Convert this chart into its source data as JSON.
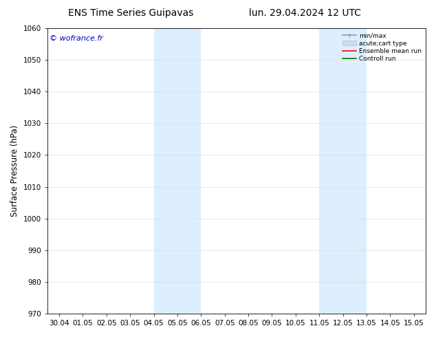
{
  "title_left": "ENS Time Series Guipavas",
  "title_right": "lun. 29.04.2024 12 UTC",
  "ylabel": "Surface Pressure (hPa)",
  "ylim": [
    970,
    1060
  ],
  "yticks": [
    970,
    980,
    990,
    1000,
    1010,
    1020,
    1030,
    1040,
    1050,
    1060
  ],
  "xtick_labels": [
    "30.04",
    "01.05",
    "02.05",
    "03.05",
    "04.05",
    "05.05",
    "06.05",
    "07.05",
    "08.05",
    "09.05",
    "10.05",
    "11.05",
    "12.05",
    "13.05",
    "14.05",
    "15.05"
  ],
  "xtick_positions": [
    0,
    1,
    2,
    3,
    4,
    5,
    6,
    7,
    8,
    9,
    10,
    11,
    12,
    13,
    14,
    15
  ],
  "shaded_regions": [
    {
      "xmin": 4,
      "xmax": 6,
      "color": "#ddeeff"
    },
    {
      "xmin": 11,
      "xmax": 13,
      "color": "#ddeeff"
    }
  ],
  "watermark": "© wofrance.fr",
  "watermark_color": "#0000bb",
  "bg_color": "#ffffff",
  "legend_entries": [
    {
      "label": "min/max",
      "color": "#999999",
      "lw": 1.2
    },
    {
      "label": "acute;cart type",
      "color": "#ccddee",
      "lw": 8
    },
    {
      "label": "Ensemble mean run",
      "color": "#ff0000",
      "lw": 1.2
    },
    {
      "label": "Controll run",
      "color": "#007700",
      "lw": 1.2
    }
  ],
  "grid_color": "#dddddd",
  "axis_color": "#000000",
  "title_fontsize": 10,
  "tick_fontsize": 7.5,
  "ylabel_fontsize": 8.5,
  "watermark_fontsize": 8,
  "legend_fontsize": 6.5
}
